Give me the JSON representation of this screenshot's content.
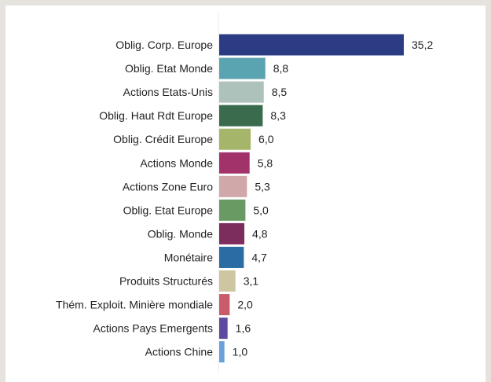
{
  "chart_data": {
    "type": "bar",
    "orientation": "horizontal",
    "categories": [
      "Oblig. Corp. Europe",
      "Oblig. Etat Monde",
      "Actions Etats-Unis",
      "Oblig. Haut Rdt Europe",
      "Oblig. Crédit Europe",
      "Actions Monde",
      "Actions Zone Euro",
      "Oblig. Etat Europe",
      "Oblig. Monde",
      "Monétaire",
      "Produits Structurés",
      "Thém. Exploit. Minière mondiale",
      "Actions Pays Emergents",
      "Actions Chine"
    ],
    "values": [
      35.2,
      8.8,
      8.5,
      8.3,
      6.0,
      5.8,
      5.3,
      5.0,
      4.8,
      4.7,
      3.1,
      2.0,
      1.6,
      1.0
    ],
    "value_labels": [
      "35,2",
      "8,8",
      "8,5",
      "8,3",
      "6,0",
      "5,8",
      "5,3",
      "5,0",
      "4,8",
      "4,7",
      "3,1",
      "2,0",
      "1,6",
      "1,0"
    ],
    "colors": [
      "#2c3c84",
      "#5aa3b1",
      "#adc2bb",
      "#3a6b4c",
      "#a5b56a",
      "#a2336a",
      "#d1a8aa",
      "#6a9a64",
      "#7c2c5d",
      "#2a6ca3",
      "#cdc6a0",
      "#c95c6a",
      "#5e4aa0",
      "#69a1d9"
    ],
    "title": "",
    "xlabel": "",
    "ylabel": "",
    "xlim": [
      0,
      35.2
    ],
    "grid": false,
    "legend": "none"
  }
}
